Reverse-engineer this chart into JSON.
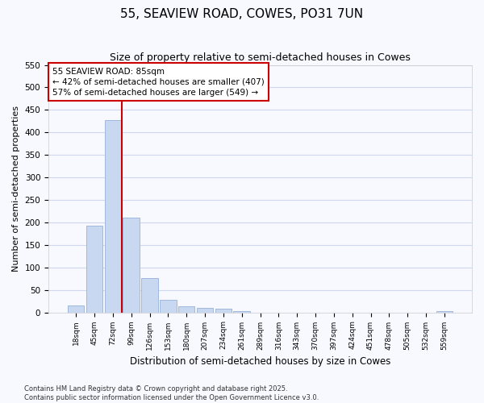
{
  "title": "55, SEAVIEW ROAD, COWES, PO31 7UN",
  "subtitle": "Size of property relative to semi-detached houses in Cowes",
  "xlabel": "Distribution of semi-detached houses by size in Cowes",
  "ylabel": "Number of semi-detached properties",
  "bin_labels": [
    "18sqm",
    "45sqm",
    "72sqm",
    "99sqm",
    "126sqm",
    "153sqm",
    "180sqm",
    "207sqm",
    "234sqm",
    "261sqm",
    "289sqm",
    "316sqm",
    "343sqm",
    "370sqm",
    "397sqm",
    "424sqm",
    "451sqm",
    "478sqm",
    "505sqm",
    "532sqm",
    "559sqm"
  ],
  "bar_values": [
    15,
    193,
    428,
    210,
    77,
    28,
    13,
    10,
    8,
    2,
    0,
    0,
    0,
    0,
    0,
    0,
    0,
    0,
    0,
    0,
    2
  ],
  "bar_color": "#c8d8f0",
  "bar_edgecolor": "#a0b8dc",
  "vline_x": 3.0,
  "vline_color": "#cc0000",
  "ylim": [
    0,
    550
  ],
  "yticks": [
    0,
    50,
    100,
    150,
    200,
    250,
    300,
    350,
    400,
    450,
    500,
    550
  ],
  "annotation_text": "55 SEAVIEW ROAD: 85sqm\n← 42% of semi-detached houses are smaller (407)\n57% of semi-detached houses are larger (549) →",
  "annotation_box_facecolor": "#ffffff",
  "annotation_box_edgecolor": "#cc0000",
  "footer_text": "Contains HM Land Registry data © Crown copyright and database right 2025.\nContains public sector information licensed under the Open Government Licence v3.0.",
  "bg_color": "#f8f9ff",
  "grid_color": "#d0d8f0",
  "title_fontsize": 11,
  "subtitle_fontsize": 9
}
